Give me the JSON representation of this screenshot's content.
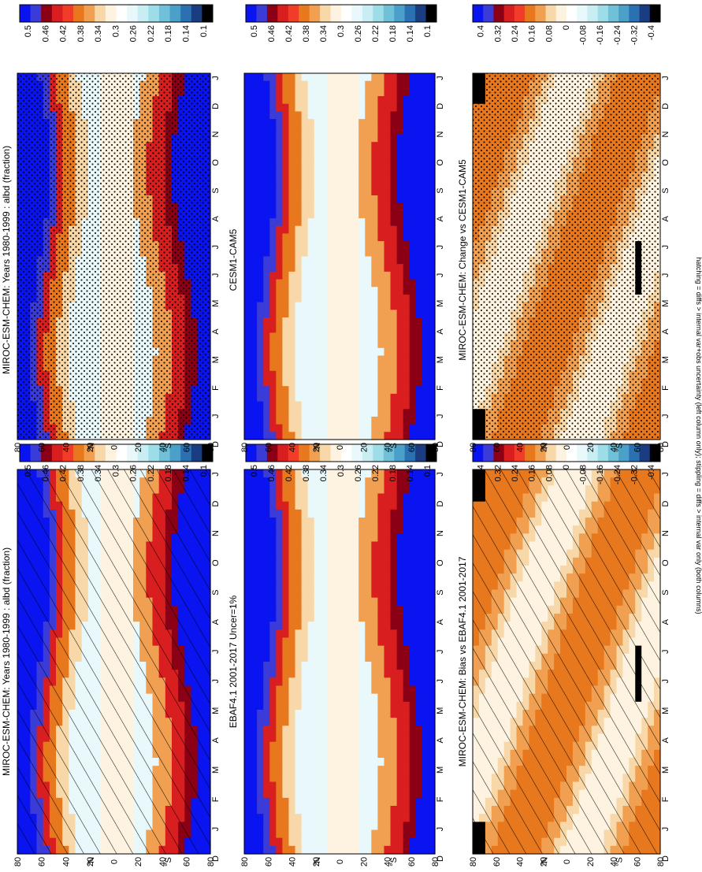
{
  "footnote": "hatching = diffs > internal var+obs uncertainty (left column only); stippling = diffs > internal var only (both columns)",
  "orientation": "rotated-90-clockwise",
  "chart_data": [
    {
      "type": "heatmap",
      "title": "MIROC-ESM-CHEM: Years 1980-1999 : albd (fraction)",
      "x_ticks": [
        "D",
        "J",
        "F",
        "M",
        "A",
        "M",
        "J",
        "J",
        "A",
        "S",
        "O",
        "N",
        "D",
        "J"
      ],
      "y_ticks": [
        "80",
        "60",
        "40",
        "20",
        "0",
        "20",
        "40",
        "60",
        "80"
      ],
      "y_hemisphere_labels": [
        "°N",
        "°S"
      ],
      "overlay": "hatching",
      "colorbar": {
        "labels": [
          "0.5",
          "0.46",
          "0.42",
          "0.38",
          "0.34",
          "0.3",
          "0.26",
          "0.22",
          "0.18",
          "0.14",
          "0.1"
        ],
        "colors": [
          "#0a14f0",
          "#3b3bd8",
          "#8b0015",
          "#d81e1e",
          "#f03c28",
          "#e8781e",
          "#f0a050",
          "#f8d8a8",
          "#fdf3e0",
          "#ffffff",
          "#e8f8fb",
          "#c8eef4",
          "#9cdde8",
          "#70c0d8",
          "#4aa0c8",
          "#2b70b0",
          "#1a3c80",
          "#000000"
        ]
      }
    },
    {
      "type": "heatmap",
      "title": "MIROC-ESM-CHEM: Years 1980-1999 : albd (fraction)",
      "x_ticks": [
        "D",
        "J",
        "F",
        "M",
        "A",
        "M",
        "J",
        "J",
        "A",
        "S",
        "O",
        "N",
        "D",
        "J"
      ],
      "y_ticks": [
        "80",
        "60",
        "40",
        "20",
        "0",
        "20",
        "40",
        "60",
        "80"
      ],
      "y_hemisphere_labels": [
        "°N",
        "°S"
      ],
      "overlay": "stippling",
      "colorbar": {
        "labels": [
          "0.5",
          "0.46",
          "0.42",
          "0.38",
          "0.34",
          "0.3",
          "0.26",
          "0.22",
          "0.18",
          "0.14",
          "0.1"
        ],
        "colors": [
          "#0a14f0",
          "#3b3bd8",
          "#8b0015",
          "#d81e1e",
          "#f03c28",
          "#e8781e",
          "#f0a050",
          "#f8d8a8",
          "#fdf3e0",
          "#ffffff",
          "#e8f8fb",
          "#c8eef4",
          "#9cdde8",
          "#70c0d8",
          "#4aa0c8",
          "#2b70b0",
          "#1a3c80",
          "#000000"
        ]
      }
    },
    {
      "type": "heatmap",
      "title": "EBAF4.1 2001-2017 Uncer=1%",
      "x_ticks": [
        "D",
        "J",
        "F",
        "M",
        "A",
        "M",
        "J",
        "J",
        "A",
        "S",
        "O",
        "N",
        "D",
        "J"
      ],
      "y_ticks": [
        "80",
        "60",
        "40",
        "20",
        "0",
        "20",
        "40",
        "60",
        "80"
      ],
      "y_hemisphere_labels": [
        "°N",
        "°S"
      ],
      "overlay": "none",
      "colorbar": {
        "labels": [
          "0.5",
          "0.46",
          "0.42",
          "0.38",
          "0.34",
          "0.3",
          "0.26",
          "0.22",
          "0.18",
          "0.14",
          "0.1"
        ],
        "colors": [
          "#0a14f0",
          "#3b3bd8",
          "#8b0015",
          "#d81e1e",
          "#f03c28",
          "#e8781e",
          "#f0a050",
          "#f8d8a8",
          "#fdf3e0",
          "#ffffff",
          "#e8f8fb",
          "#c8eef4",
          "#9cdde8",
          "#70c0d8",
          "#4aa0c8",
          "#2b70b0",
          "#1a3c80",
          "#000000"
        ]
      }
    },
    {
      "type": "heatmap",
      "title": "CESM1-CAM5",
      "x_ticks": [
        "D",
        "J",
        "F",
        "M",
        "A",
        "M",
        "J",
        "J",
        "A",
        "S",
        "O",
        "N",
        "D",
        "J"
      ],
      "y_ticks": [
        "80",
        "60",
        "40",
        "20",
        "0",
        "20",
        "40",
        "60",
        "80"
      ],
      "y_hemisphere_labels": [
        "°N",
        "°S"
      ],
      "overlay": "none",
      "colorbar": {
        "labels": [
          "0.5",
          "0.46",
          "0.42",
          "0.38",
          "0.34",
          "0.3",
          "0.26",
          "0.22",
          "0.18",
          "0.14",
          "0.1"
        ],
        "colors": [
          "#0a14f0",
          "#3b3bd8",
          "#8b0015",
          "#d81e1e",
          "#f03c28",
          "#e8781e",
          "#f0a050",
          "#f8d8a8",
          "#fdf3e0",
          "#ffffff",
          "#e8f8fb",
          "#c8eef4",
          "#9cdde8",
          "#70c0d8",
          "#4aa0c8",
          "#2b70b0",
          "#1a3c80",
          "#000000"
        ]
      }
    },
    {
      "type": "heatmap",
      "title": "MIROC-ESM-CHEM: Bias vs EBAF4.1 2001-2017",
      "x_ticks": [
        "D",
        "J",
        "F",
        "M",
        "A",
        "M",
        "J",
        "J",
        "A",
        "S",
        "O",
        "N",
        "D",
        "J"
      ],
      "y_ticks": [
        "80",
        "60",
        "40",
        "20",
        "0",
        "20",
        "40",
        "60",
        "80"
      ],
      "y_hemisphere_labels": [
        "°N",
        "°S"
      ],
      "overlay": "hatching",
      "colorbar": {
        "labels": [
          "0.4",
          "0.32",
          "0.24",
          "0.16",
          "0.08",
          "0",
          "-0.08",
          "-0.16",
          "-0.24",
          "-0.32",
          "-0.4"
        ],
        "colors": [
          "#0a14f0",
          "#3b3bd8",
          "#8b0015",
          "#d81e1e",
          "#f03c28",
          "#e8781e",
          "#f0a050",
          "#f8d8a8",
          "#fdf3e0",
          "#ffffff",
          "#e8f8fb",
          "#c8eef4",
          "#9cdde8",
          "#70c0d8",
          "#4aa0c8",
          "#2b70b0",
          "#1a3c80",
          "#000000"
        ]
      }
    },
    {
      "type": "heatmap",
      "title": "MIROC-ESM-CHEM: Change vs CESM1-CAM5",
      "x_ticks": [
        "D",
        "J",
        "F",
        "M",
        "A",
        "M",
        "J",
        "J",
        "A",
        "S",
        "O",
        "N",
        "D",
        "J"
      ],
      "y_ticks": [
        "80",
        "60",
        "40",
        "20",
        "0",
        "20",
        "40",
        "60",
        "80"
      ],
      "y_hemisphere_labels": [
        "°N",
        "°S"
      ],
      "overlay": "stippling",
      "colorbar": {
        "labels": [
          "0.4",
          "0.32",
          "0.24",
          "0.16",
          "0.08",
          "0",
          "-0.08",
          "-0.16",
          "-0.24",
          "-0.32",
          "-0.4"
        ],
        "colors": [
          "#0a14f0",
          "#3b3bd8",
          "#8b0015",
          "#d81e1e",
          "#f03c28",
          "#e8781e",
          "#f0a050",
          "#f8d8a8",
          "#fdf3e0",
          "#ffffff",
          "#e8f8fb",
          "#c8eef4",
          "#9cdde8",
          "#70c0d8",
          "#4aa0c8",
          "#2b70b0",
          "#1a3c80",
          "#000000"
        ]
      }
    }
  ]
}
